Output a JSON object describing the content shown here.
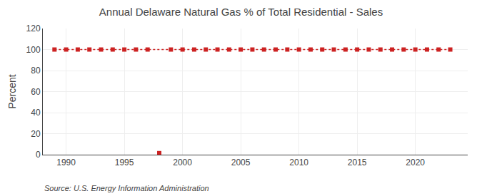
{
  "chart_data": {
    "type": "line",
    "title": "Annual Delaware Natural Gas % of Total Residential - Sales",
    "ylabel": "Percent",
    "annotations": [
      "Source: U.S. Energy Information Administration"
    ],
    "series": [
      {
        "x": [
          1989,
          1990,
          1991,
          1992,
          1993,
          1994,
          1995,
          1996,
          1997,
          1999,
          2000,
          2001,
          2002,
          2003,
          2004,
          2005,
          2006,
          2007,
          2008,
          2009,
          2010,
          2011,
          2012,
          2013,
          2014,
          2015,
          2016,
          2017,
          2018,
          2019,
          2020,
          2021,
          2022,
          2023
        ],
        "values": [
          100,
          100,
          100,
          100,
          100,
          100,
          100,
          100,
          100,
          100,
          100,
          100,
          100,
          100,
          100,
          100,
          100,
          100,
          100,
          100,
          100,
          100,
          100,
          100,
          100,
          100,
          100,
          100,
          100,
          100,
          100,
          100,
          100,
          100
        ],
        "color": "#cc2222",
        "marker": "square",
        "line_style": "dotted"
      },
      {
        "x": [
          1998
        ],
        "values": [
          1.5
        ],
        "color": "#cc2222",
        "marker": "square",
        "line_style": "none"
      }
    ],
    "xlim": [
      1988.0,
      2024.5
    ],
    "xticks": [
      1990,
      1995,
      2000,
      2005,
      2010,
      2015,
      2020
    ],
    "ylim": [
      0,
      120
    ],
    "yticks": [
      0,
      20,
      40,
      60,
      80,
      100,
      120
    ],
    "grid": true
  }
}
